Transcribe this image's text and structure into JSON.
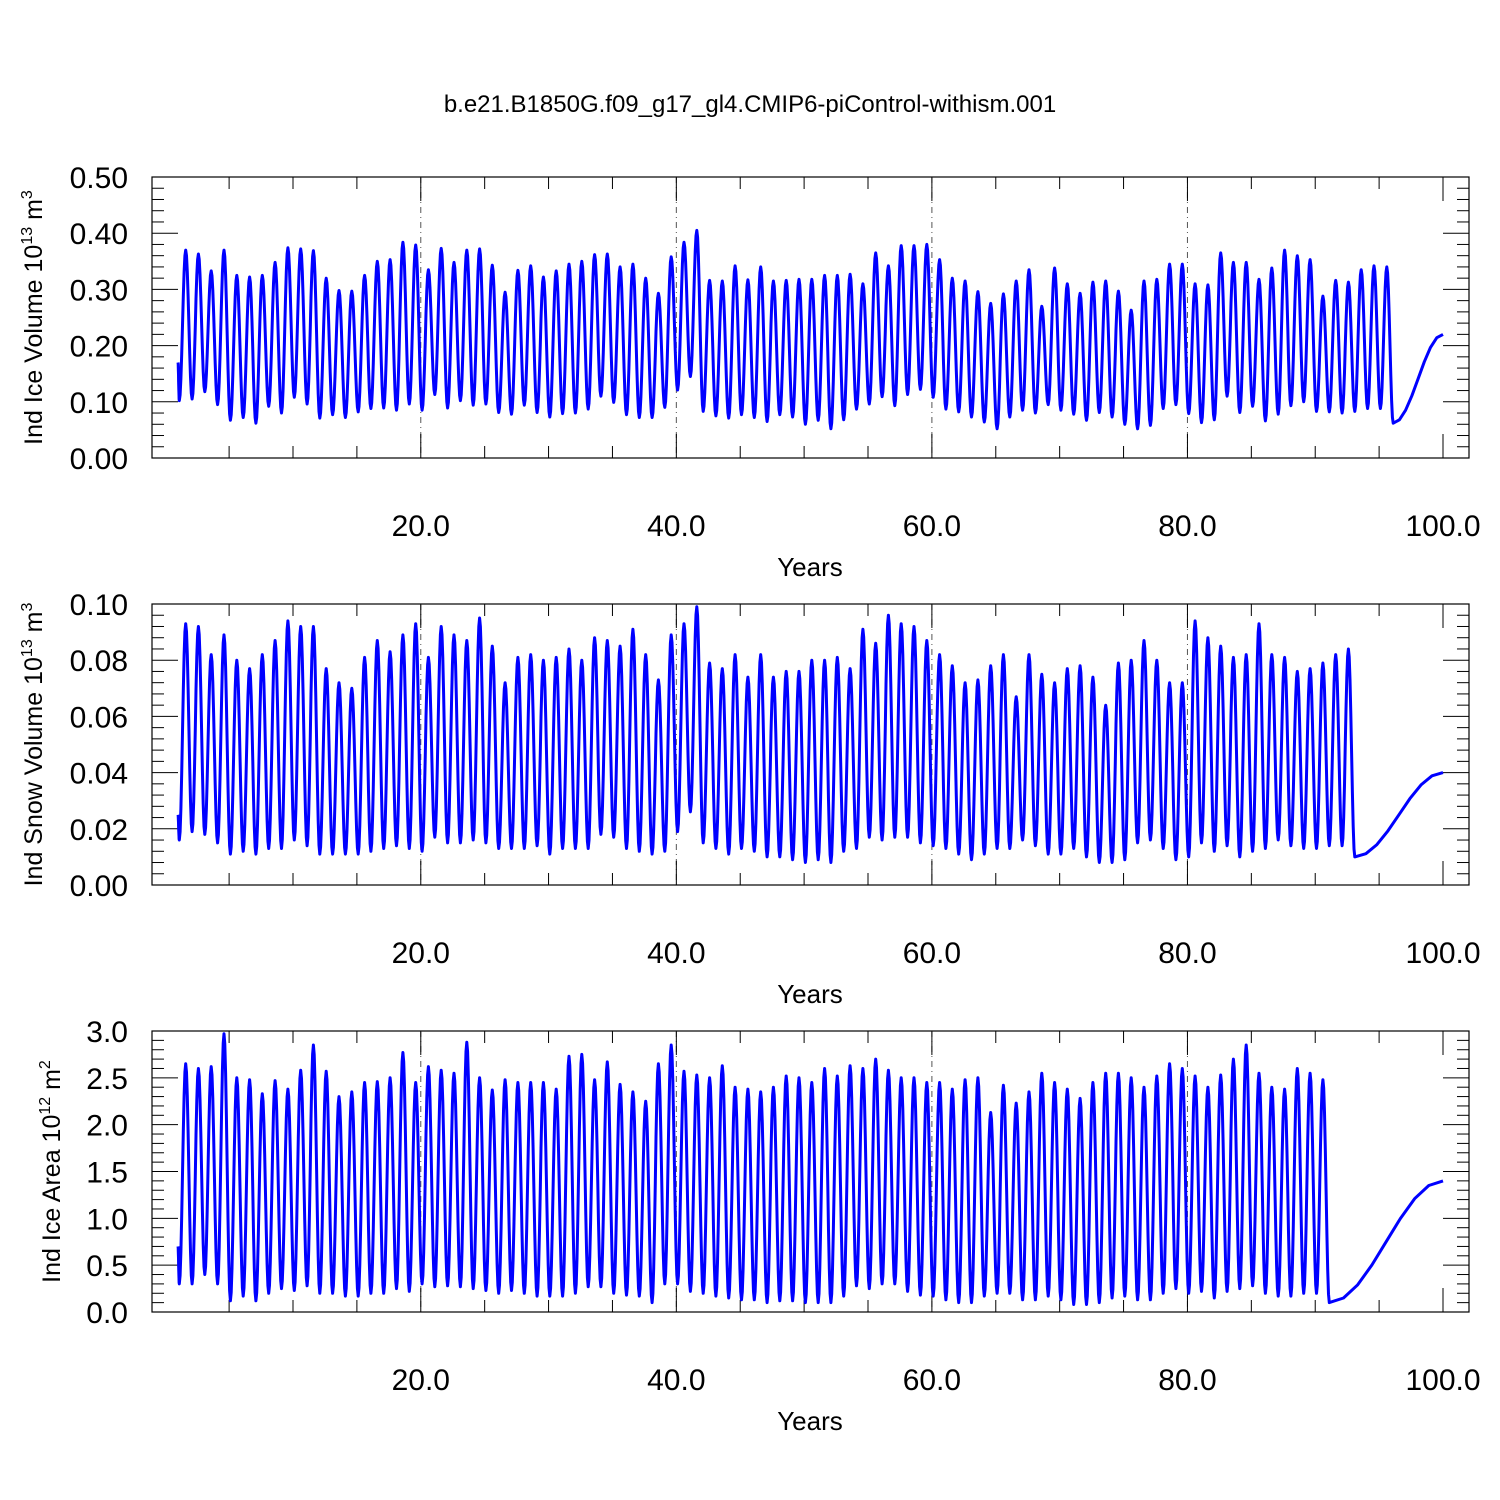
{
  "figure_title": "b.e21.B1850G.f09_g17_gl4.CMIP6-piControl-withism.001",
  "line_color": "#0000ff",
  "chart_data": [
    {
      "type": "line",
      "title": "",
      "ylabel": {
        "text": "Ind Ice Volume 10",
        "sup": "13",
        "unit": " m",
        "unit_sup": "3"
      },
      "xlabel": "Years",
      "xlim": [
        1,
        100
      ],
      "ylim": [
        0,
        0.5
      ],
      "xticks": [
        20,
        40,
        60,
        80,
        100
      ],
      "xtick_labels": [
        "20.0",
        "40.0",
        "60.0",
        "80.0",
        "100.0"
      ],
      "yticks": [
        0,
        0.1,
        0.2,
        0.3,
        0.4,
        0.5
      ],
      "ytick_labels": [
        "0.00",
        "0.10",
        "0.20",
        "0.30",
        "0.40",
        "0.50"
      ],
      "y_minor_step": 0.02,
      "x_minor_step": 5,
      "series": [
        {
          "x_start": 1,
          "x_step": 0.5,
          "peak_phase": 0.25,
          "first_value": 0.17,
          "last_value": 0.22,
          "values": [
            0.102,
            0.37,
            0.105,
            0.363,
            0.118,
            0.333,
            0.095,
            0.37,
            0.067,
            0.325,
            0.072,
            0.322,
            0.062,
            0.325,
            0.092,
            0.348,
            0.08,
            0.374,
            0.108,
            0.372,
            0.096,
            0.369,
            0.071,
            0.32,
            0.077,
            0.298,
            0.072,
            0.297,
            0.082,
            0.325,
            0.088,
            0.35,
            0.089,
            0.353,
            0.085,
            0.384,
            0.096,
            0.379,
            0.085,
            0.335,
            0.113,
            0.373,
            0.089,
            0.348,
            0.102,
            0.37,
            0.094,
            0.372,
            0.096,
            0.343,
            0.081,
            0.295,
            0.078,
            0.334,
            0.094,
            0.342,
            0.081,
            0.322,
            0.073,
            0.333,
            0.079,
            0.345,
            0.08,
            0.35,
            0.087,
            0.362,
            0.11,
            0.363,
            0.099,
            0.34,
            0.077,
            0.345,
            0.072,
            0.32,
            0.072,
            0.293,
            0.09,
            0.358,
            0.121,
            0.384,
            0.145,
            0.405,
            0.083,
            0.316,
            0.075,
            0.315,
            0.071,
            0.342,
            0.077,
            0.317,
            0.072,
            0.34,
            0.065,
            0.315,
            0.077,
            0.316,
            0.073,
            0.318,
            0.06,
            0.318,
            0.067,
            0.325,
            0.052,
            0.325,
            0.068,
            0.327,
            0.087,
            0.31,
            0.096,
            0.365,
            0.109,
            0.342,
            0.093,
            0.378,
            0.113,
            0.378,
            0.122,
            0.38,
            0.108,
            0.353,
            0.087,
            0.32,
            0.082,
            0.315,
            0.073,
            0.296,
            0.064,
            0.275,
            0.052,
            0.292,
            0.073,
            0.315,
            0.085,
            0.335,
            0.08,
            0.27,
            0.095,
            0.338,
            0.085,
            0.31,
            0.078,
            0.293,
            0.067,
            0.313,
            0.081,
            0.315,
            0.073,
            0.297,
            0.06,
            0.263,
            0.052,
            0.315,
            0.058,
            0.318,
            0.088,
            0.345,
            0.095,
            0.345,
            0.079,
            0.31,
            0.063,
            0.308,
            0.068,
            0.365,
            0.11,
            0.348,
            0.081,
            0.348,
            0.092,
            0.318,
            0.066,
            0.338,
            0.078,
            0.37,
            0.093,
            0.36,
            0.1,
            0.353,
            0.083,
            0.288,
            0.082,
            0.316,
            0.08,
            0.313,
            0.083,
            0.335,
            0.088,
            0.342,
            0.088,
            0.34,
            0.062
          ]
        }
      ]
    },
    {
      "type": "line",
      "title": "",
      "ylabel": {
        "text": "Ind Snow Volume 10",
        "sup": "13",
        "unit": " m",
        "unit_sup": "3"
      },
      "xlabel": "Years",
      "xlim": [
        1,
        100
      ],
      "ylim": [
        0,
        0.1
      ],
      "xticks": [
        20,
        40,
        60,
        80,
        100
      ],
      "xtick_labels": [
        "20.0",
        "40.0",
        "60.0",
        "80.0",
        "100.0"
      ],
      "yticks": [
        0,
        0.02,
        0.04,
        0.06,
        0.08,
        0.1
      ],
      "ytick_labels": [
        "0.00",
        "0.02",
        "0.04",
        "0.06",
        "0.08",
        "0.10"
      ],
      "y_minor_step": 0.004,
      "x_minor_step": 5,
      "series": [
        {
          "x_start": 1,
          "x_step": 0.5,
          "peak_phase": 0.25,
          "first_value": 0.025,
          "last_value": 0.04,
          "values": [
            0.016,
            0.093,
            0.019,
            0.092,
            0.018,
            0.082,
            0.015,
            0.089,
            0.011,
            0.08,
            0.012,
            0.077,
            0.011,
            0.082,
            0.013,
            0.087,
            0.013,
            0.094,
            0.016,
            0.092,
            0.014,
            0.092,
            0.011,
            0.077,
            0.011,
            0.072,
            0.011,
            0.07,
            0.011,
            0.081,
            0.012,
            0.087,
            0.013,
            0.083,
            0.014,
            0.089,
            0.013,
            0.093,
            0.012,
            0.081,
            0.017,
            0.092,
            0.015,
            0.089,
            0.015,
            0.087,
            0.016,
            0.095,
            0.015,
            0.085,
            0.013,
            0.072,
            0.013,
            0.081,
            0.013,
            0.082,
            0.014,
            0.08,
            0.011,
            0.081,
            0.013,
            0.084,
            0.013,
            0.08,
            0.013,
            0.088,
            0.018,
            0.087,
            0.017,
            0.085,
            0.013,
            0.091,
            0.012,
            0.082,
            0.011,
            0.073,
            0.012,
            0.089,
            0.019,
            0.093,
            0.026,
            0.099,
            0.015,
            0.079,
            0.013,
            0.077,
            0.011,
            0.082,
            0.013,
            0.074,
            0.012,
            0.082,
            0.01,
            0.074,
            0.01,
            0.076,
            0.009,
            0.076,
            0.008,
            0.08,
            0.009,
            0.08,
            0.008,
            0.081,
            0.012,
            0.077,
            0.013,
            0.091,
            0.017,
            0.086,
            0.016,
            0.096,
            0.017,
            0.093,
            0.017,
            0.092,
            0.015,
            0.087,
            0.014,
            0.082,
            0.013,
            0.078,
            0.011,
            0.072,
            0.009,
            0.073,
            0.011,
            0.078,
            0.013,
            0.082,
            0.013,
            0.067,
            0.016,
            0.082,
            0.014,
            0.075,
            0.011,
            0.072,
            0.011,
            0.077,
            0.013,
            0.078,
            0.01,
            0.074,
            0.008,
            0.064,
            0.008,
            0.079,
            0.009,
            0.08,
            0.015,
            0.087,
            0.016,
            0.08,
            0.013,
            0.072,
            0.009,
            0.072,
            0.01,
            0.094,
            0.015,
            0.088,
            0.012,
            0.085,
            0.014,
            0.081,
            0.01,
            0.082,
            0.012,
            0.093,
            0.013,
            0.082,
            0.016,
            0.081,
            0.014,
            0.076,
            0.013,
            0.077,
            0.013,
            0.079,
            0.014,
            0.082,
            0.014,
            0.084,
            0.01
          ]
        }
      ]
    },
    {
      "type": "line",
      "title": "",
      "ylabel": {
        "text": "Ind Ice Area 10",
        "sup": "12",
        "unit": " m",
        "unit_sup": "2"
      },
      "xlabel": "Years",
      "xlim": [
        1,
        100
      ],
      "ylim": [
        0,
        3
      ],
      "xticks": [
        20,
        40,
        60,
        80,
        100
      ],
      "xtick_labels": [
        "20.0",
        "40.0",
        "60.0",
        "80.0",
        "100.0"
      ],
      "yticks": [
        0,
        0.5,
        1,
        1.5,
        2,
        2.5,
        3
      ],
      "ytick_labels": [
        "0.0",
        "0.5",
        "1.0",
        "1.5",
        "2.0",
        "2.5",
        "3.0"
      ],
      "y_minor_step": 0.1,
      "x_minor_step": 5,
      "series": [
        {
          "x_start": 1,
          "x_step": 0.5,
          "peak_phase": 0.25,
          "first_value": 0.7,
          "last_value": 1.4,
          "values": [
            0.3,
            2.65,
            0.3,
            2.6,
            0.4,
            2.62,
            0.3,
            2.97,
            0.12,
            2.5,
            0.17,
            2.48,
            0.12,
            2.33,
            0.2,
            2.47,
            0.25,
            2.38,
            0.23,
            2.58,
            0.28,
            2.85,
            0.2,
            2.57,
            0.2,
            2.3,
            0.17,
            2.35,
            0.17,
            2.45,
            0.2,
            2.46,
            0.2,
            2.5,
            0.25,
            2.77,
            0.22,
            2.45,
            0.3,
            2.62,
            0.27,
            2.58,
            0.28,
            2.55,
            0.27,
            2.88,
            0.25,
            2.5,
            0.23,
            2.37,
            0.2,
            2.48,
            0.23,
            2.45,
            0.2,
            2.45,
            0.17,
            2.45,
            0.17,
            2.38,
            0.17,
            2.73,
            0.2,
            2.75,
            0.27,
            2.48,
            0.27,
            2.67,
            0.2,
            2.43,
            0.18,
            2.35,
            0.17,
            2.25,
            0.1,
            2.65,
            0.3,
            2.85,
            0.3,
            2.57,
            0.22,
            2.53,
            0.2,
            2.5,
            0.17,
            2.63,
            0.15,
            2.4,
            0.13,
            2.38,
            0.13,
            2.35,
            0.1,
            2.4,
            0.12,
            2.52,
            0.12,
            2.5,
            0.1,
            2.45,
            0.1,
            2.6,
            0.1,
            2.52,
            0.17,
            2.63,
            0.28,
            2.6,
            0.25,
            2.7,
            0.3,
            2.58,
            0.3,
            2.5,
            0.22,
            2.5,
            0.18,
            2.45,
            0.17,
            2.45,
            0.13,
            2.38,
            0.1,
            2.48,
            0.1,
            2.5,
            0.17,
            2.13,
            0.2,
            2.42,
            0.2,
            2.23,
            0.13,
            2.35,
            0.13,
            2.55,
            0.17,
            2.45,
            0.13,
            2.38,
            0.08,
            2.28,
            0.08,
            2.45,
            0.1,
            2.55,
            0.15,
            2.55,
            0.17,
            2.5,
            0.13,
            2.4,
            0.13,
            2.52,
            0.2,
            2.65,
            0.25,
            2.6,
            0.2,
            2.52,
            0.22,
            2.4,
            0.15,
            2.53,
            0.22,
            2.7,
            0.25,
            2.85,
            0.28,
            2.55,
            0.2,
            2.4,
            0.17,
            2.38,
            0.17,
            2.6,
            0.2,
            2.55,
            0.2,
            2.48,
            0.1
          ]
        }
      ]
    }
  ]
}
